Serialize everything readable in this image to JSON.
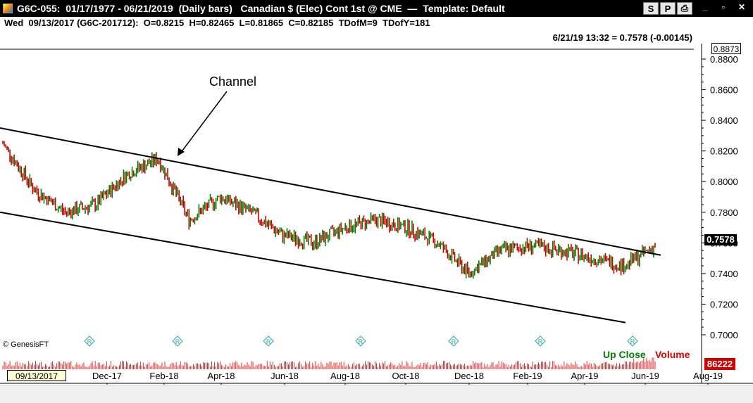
{
  "window": {
    "title": "G6C-055:  01/17/1977 - 06/21/2019  (Daily bars)   Canadian $ (Elec) Cont 1st @ CME  —  Template: Default",
    "buttons": [
      "S",
      "P",
      "⎙"
    ],
    "sys": [
      "_",
      "▫",
      "✕"
    ]
  },
  "infobar": {
    "text": "Wed  09/13/2017 (G6C-201712):  O=0.8215  H=0.82465  L=0.81865  C=0.82185  TDofM=9  TDofY=181"
  },
  "readout": "6/21/19 13:32 = 0.7578 (-0.00145)",
  "annotation": "Channel",
  "copyright": "© GenesisFT",
  "legend": {
    "up": "Up Close",
    "volume": "Volume"
  },
  "current_date_box": "09/13/2017",
  "current_price_box": "0.7578",
  "top_price_box": "0.8873",
  "volume_box": "86222",
  "colors": {
    "up": "#008000",
    "down": "#c80000",
    "volume": "#d40000"
  },
  "chart_data": {
    "type": "bar",
    "title": "",
    "y_ticks": [
      "0.8800",
      "0.8600",
      "0.8400",
      "0.8200",
      "0.8000",
      "0.7800",
      "0.7600",
      "0.7400",
      "0.7200",
      "0.7000"
    ],
    "ylim": [
      0.69,
      0.89
    ],
    "x_ticks": [
      "Dec-17",
      "Feb-18",
      "Apr-18",
      "Jun-18",
      "Aug-18",
      "Oct-18",
      "Dec-18",
      "Feb-19",
      "Apr-19",
      "Jun-19",
      "Aug-19"
    ],
    "series": [
      {
        "name": "",
        "x": [
          "Sep-17",
          "Oct-17",
          "Nov-17",
          "Dec-17",
          "Jan-18",
          "Feb-18",
          "Mar-18",
          "Apr-18",
          "May-18",
          "Jun-18",
          "Jul-18",
          "Aug-18",
          "Sep-18",
          "Oct-18",
          "Nov-18",
          "Dec-18",
          "Jan-19",
          "Feb-19",
          "Mar-19",
          "Apr-19",
          "May-19",
          "Jun-19"
        ],
        "values": [
          0.825,
          0.795,
          0.78,
          0.785,
          0.805,
          0.815,
          0.775,
          0.79,
          0.78,
          0.765,
          0.76,
          0.77,
          0.775,
          0.77,
          0.76,
          0.74,
          0.755,
          0.758,
          0.755,
          0.75,
          0.745,
          0.758
        ]
      }
    ],
    "channel_lines": [
      {
        "name": "upper",
        "points": [
          [
            "Sep-17",
            0.835
          ],
          [
            "Jun-19",
            0.752
          ]
        ]
      },
      {
        "name": "lower",
        "points": [
          [
            "Sep-17",
            0.78
          ],
          [
            "May-19",
            0.708
          ]
        ]
      }
    ]
  }
}
